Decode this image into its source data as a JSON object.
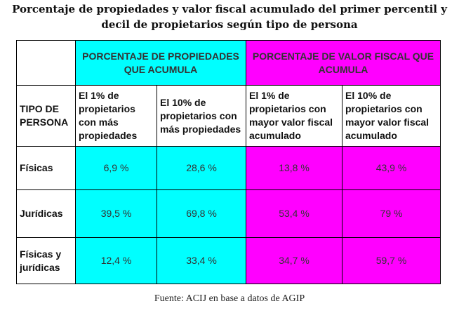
{
  "title": "Porcentaje de propiedades y valor fiscal acumulado del primer percentil y decil de propietarios según tipo de persona",
  "source": "Fuente: ACIJ en base a datos de AGIP",
  "table": {
    "group_headers": [
      "PORCENTAJE DE PROPIEDADES QUE ACUMULA",
      "PORCENTAJE DE VALOR FISCAL QUE ACUMULA"
    ],
    "row_header": "TIPO DE PERSONA",
    "columns": [
      "El 1% de propietarios con más propiedades",
      "El 10% de propietarios con más propiedades",
      "El 1% de propietarios con mayor valor fiscal acumulado",
      "El 10% de propietarios con mayor valor fiscal acumulado"
    ],
    "rows": [
      {
        "label": "Físicas",
        "values": [
          "6,9 %",
          "28,6 %",
          "13,8 %",
          "43,9 %"
        ]
      },
      {
        "label": "Jurídicas",
        "values": [
          "39,5 %",
          "69,8 %",
          "53,4 %",
          "79 %"
        ]
      },
      {
        "label": "Físicas y jurídicas",
        "values": [
          "12,4 %",
          "33,4 %",
          "34,7 %",
          "59,7 %"
        ]
      }
    ]
  },
  "colors": {
    "properties": "#00ffff",
    "fiscal": "#ff00ff"
  }
}
